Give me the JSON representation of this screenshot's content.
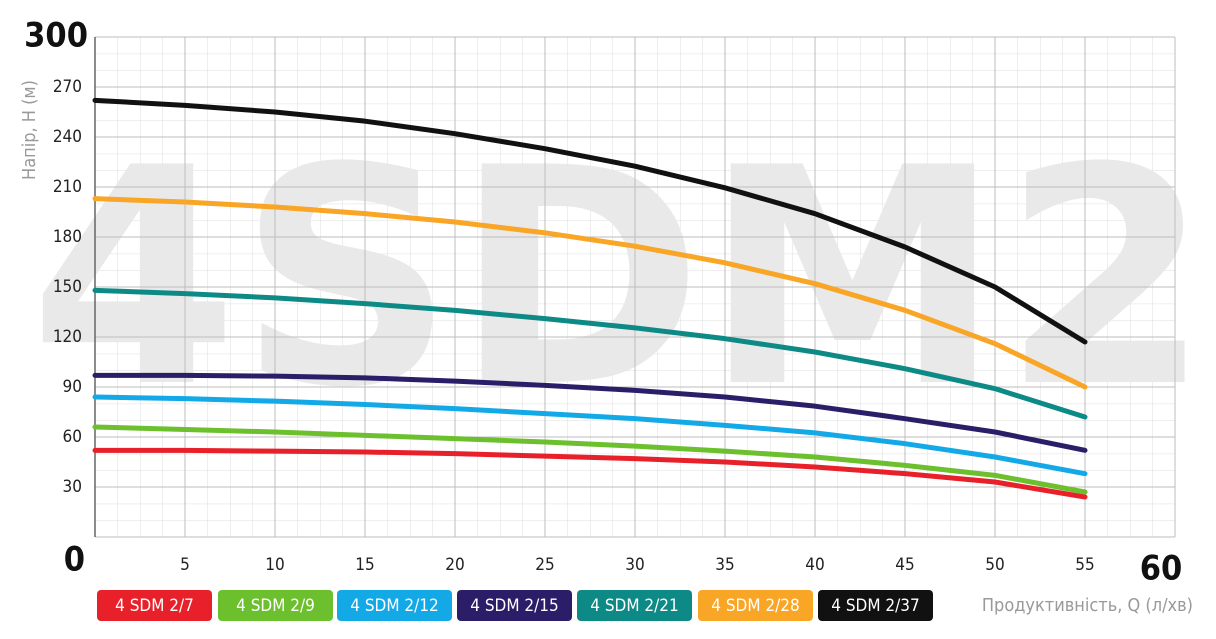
{
  "chart_data": {
    "type": "line",
    "watermark": "4SDM2",
    "y_label": "Напір, Н (м)",
    "x_label": "Продуктивність, Q (л/хв)",
    "x": [
      0,
      5,
      10,
      15,
      20,
      25,
      30,
      35,
      40,
      45,
      50,
      55
    ],
    "xlim": [
      0,
      60
    ],
    "xticks": [
      0,
      5,
      10,
      15,
      20,
      25,
      30,
      35,
      40,
      45,
      50,
      55,
      60
    ],
    "ylim": [
      0,
      300
    ],
    "yticks": [
      0,
      30,
      60,
      90,
      120,
      150,
      180,
      210,
      240,
      270,
      300
    ],
    "grid": true,
    "series": [
      {
        "name": "4 SDM 2/7",
        "color": "#e8202a",
        "values": [
          52,
          52,
          51.5,
          51,
          50,
          48.5,
          47,
          45,
          42,
          38,
          33,
          24
        ]
      },
      {
        "name": "4 SDM 2/9",
        "color": "#6cc02e",
        "values": [
          66,
          64.5,
          63,
          61,
          59,
          57,
          54.5,
          51.5,
          48,
          43,
          37,
          27
        ]
      },
      {
        "name": "4 SDM 2/12",
        "color": "#13a9e6",
        "values": [
          84,
          83,
          81.5,
          79.5,
          77,
          74,
          71,
          67,
          62.5,
          56,
          48,
          38
        ]
      },
      {
        "name": "4 SDM 2/15",
        "color": "#2b1d68",
        "values": [
          97,
          97,
          96.5,
          95.5,
          93.5,
          91,
          88,
          84,
          78.5,
          71,
          63,
          52
        ]
      },
      {
        "name": "4 SDM 2/21",
        "color": "#0e8a86",
        "values": [
          148,
          146,
          143.5,
          140,
          136,
          131,
          125.5,
          119,
          111,
          101,
          89,
          72
        ]
      },
      {
        "name": "4 SDM 2/28",
        "color": "#f9a526",
        "values": [
          203,
          201,
          198,
          194,
          189,
          182.5,
          174.5,
          164.5,
          152,
          136,
          116,
          90
        ]
      },
      {
        "name": "4 SDM 2/37",
        "color": "#111111",
        "values": [
          262,
          259,
          255,
          249.5,
          242,
          233,
          222.5,
          209.5,
          194,
          174,
          150,
          117
        ]
      }
    ]
  }
}
